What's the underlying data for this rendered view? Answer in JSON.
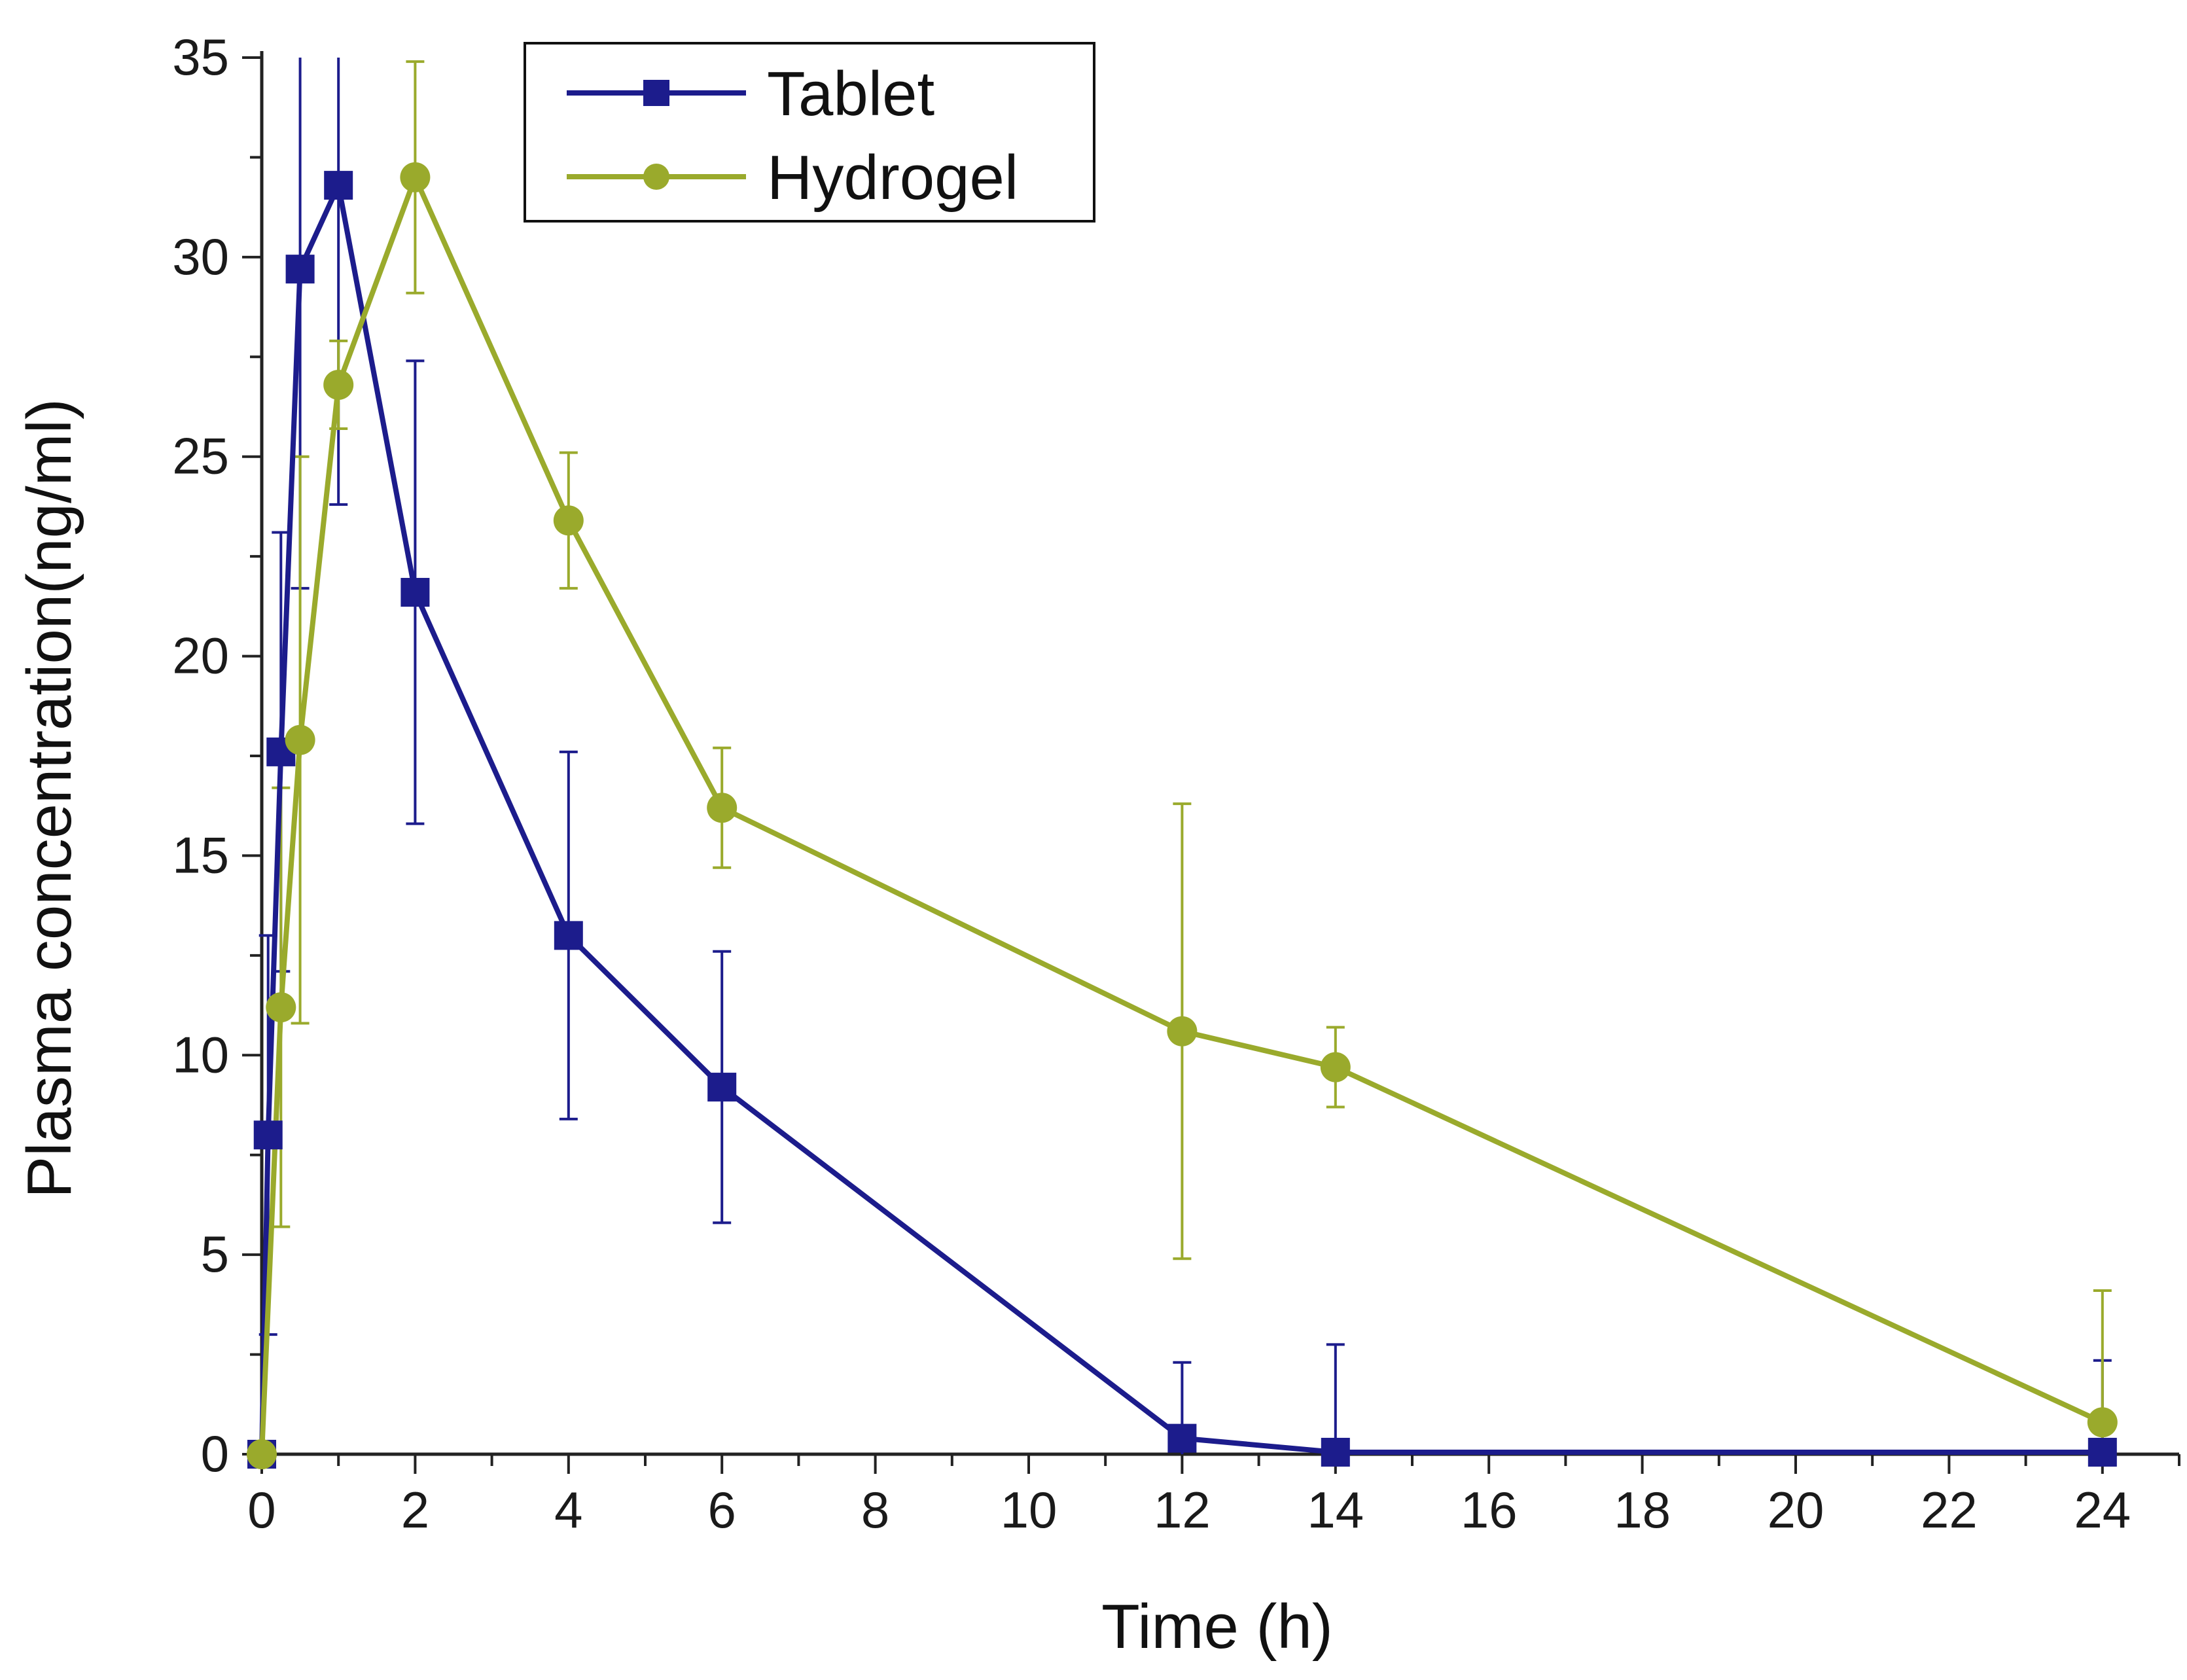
{
  "chart_data": {
    "type": "line",
    "title": "",
    "xlabel": "Time (h)",
    "ylabel": "Plasma concentration(ng/ml)",
    "xlim": [
      0,
      25
    ],
    "ylim": [
      0,
      35
    ],
    "x_ticks": [
      0,
      2,
      4,
      6,
      8,
      10,
      12,
      14,
      16,
      18,
      20,
      22,
      24
    ],
    "y_ticks": [
      0,
      5,
      10,
      15,
      20,
      25,
      30,
      35
    ],
    "grid": false,
    "legend_position": "top-left",
    "series": [
      {
        "name": "Tablet",
        "color": "#1c1c8c",
        "marker": "square",
        "points": [
          {
            "x": 0,
            "y": 0,
            "err": 0
          },
          {
            "x": 0.083,
            "y": 8.0,
            "err": 5.0
          },
          {
            "x": 0.25,
            "y": 17.6,
            "err": 5.5
          },
          {
            "x": 0.5,
            "y": 29.7,
            "err": 8.0
          },
          {
            "x": 1,
            "y": 31.8,
            "err": 8.0
          },
          {
            "x": 2,
            "y": 21.6,
            "err": 5.8
          },
          {
            "x": 4,
            "y": 13.0,
            "err": 4.6
          },
          {
            "x": 6,
            "y": 9.2,
            "err": 3.4
          },
          {
            "x": 12,
            "y": 0.4,
            "err": 1.9
          },
          {
            "x": 14,
            "y": 0.05,
            "err": 2.7
          },
          {
            "x": 24,
            "y": 0.05,
            "err": 2.3
          }
        ]
      },
      {
        "name": "Hydrogel",
        "color": "#9aaa2c",
        "marker": "circle",
        "points": [
          {
            "x": 0,
            "y": 0,
            "err": 0
          },
          {
            "x": 0.25,
            "y": 11.2,
            "err": 5.5
          },
          {
            "x": 0.5,
            "y": 17.9,
            "err": 7.1
          },
          {
            "x": 1,
            "y": 26.8,
            "err": 1.1
          },
          {
            "x": 2,
            "y": 32.0,
            "err": 2.9
          },
          {
            "x": 4,
            "y": 23.4,
            "err": 1.7
          },
          {
            "x": 6,
            "y": 16.2,
            "err": 1.5
          },
          {
            "x": 12,
            "y": 10.6,
            "err": 5.7
          },
          {
            "x": 14,
            "y": 9.7,
            "err": 1.0
          },
          {
            "x": 24,
            "y": 0.8,
            "err": 3.3
          }
        ]
      }
    ]
  }
}
